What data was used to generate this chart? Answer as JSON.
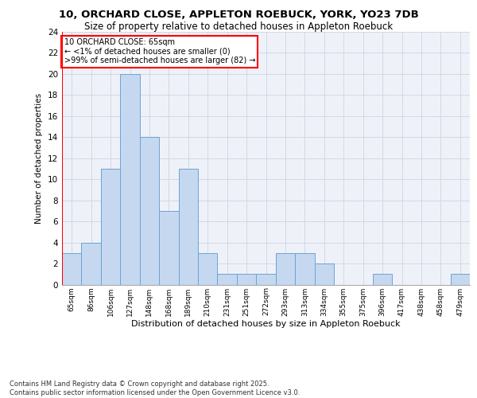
{
  "title_line1": "10, ORCHARD CLOSE, APPLETON ROEBUCK, YORK, YO23 7DB",
  "title_line2": "Size of property relative to detached houses in Appleton Roebuck",
  "xlabel": "Distribution of detached houses by size in Appleton Roebuck",
  "ylabel": "Number of detached properties",
  "bins": [
    "65sqm",
    "86sqm",
    "106sqm",
    "127sqm",
    "148sqm",
    "168sqm",
    "189sqm",
    "210sqm",
    "231sqm",
    "251sqm",
    "272sqm",
    "293sqm",
    "313sqm",
    "334sqm",
    "355sqm",
    "375sqm",
    "396sqm",
    "417sqm",
    "438sqm",
    "458sqm",
    "479sqm"
  ],
  "values": [
    3,
    4,
    11,
    20,
    14,
    7,
    11,
    3,
    1,
    1,
    1,
    3,
    3,
    2,
    0,
    0,
    1,
    0,
    0,
    0,
    1
  ],
  "bar_color": "#c5d8f0",
  "bar_edge_color": "#6ba3d6",
  "grid_color": "#d0d8e8",
  "background_color": "#eef2f8",
  "annotation_text": "10 ORCHARD CLOSE: 65sqm\n← <1% of detached houses are smaller (0)\n>99% of semi-detached houses are larger (82) →",
  "annotation_box_color": "white",
  "annotation_box_edge_color": "red",
  "footer_text": "Contains HM Land Registry data © Crown copyright and database right 2025.\nContains public sector information licensed under the Open Government Licence v3.0.",
  "ylim": [
    0,
    24
  ],
  "yticks": [
    0,
    2,
    4,
    6,
    8,
    10,
    12,
    14,
    16,
    18,
    20,
    22,
    24
  ]
}
